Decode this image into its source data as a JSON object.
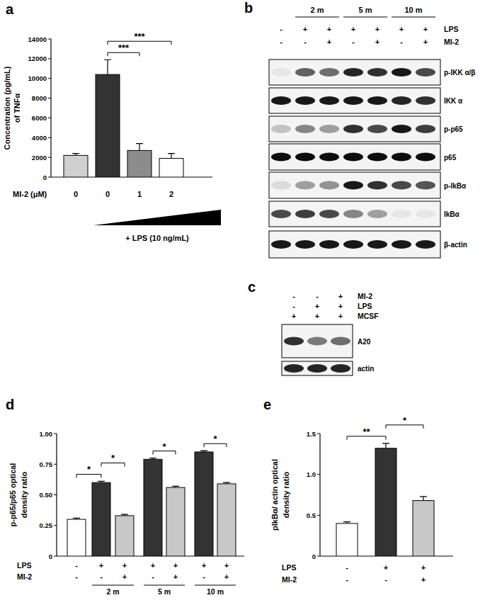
{
  "chart_data": [
    {
      "type": "bar",
      "panel_label": "a",
      "y_label": [
        "Concentration (pg/mL)",
        "of TNFα"
      ],
      "category_label": "MI-2 (μM)",
      "categories": [
        "0",
        "0",
        "1",
        "2"
      ],
      "values": [
        2200,
        10400,
        2700,
        1900
      ],
      "errors": [
        200,
        1500,
        700,
        500
      ],
      "colors": [
        "#d0d0d0",
        "#333333",
        "#8c8c8c",
        "#ffffff"
      ],
      "ylim": [
        0,
        14000
      ],
      "yticks": [
        0,
        2000,
        4000,
        6000,
        8000,
        10000,
        12000,
        14000
      ],
      "treatment_label": "+ LPS  (10 ng/mL)",
      "annotations": [
        {
          "from": 1,
          "to": 2,
          "label": "***"
        },
        {
          "from": 1,
          "to": 3,
          "label": "***"
        }
      ]
    },
    {
      "type": "bar",
      "panel_label": "d",
      "y_label": [
        "p-p65/p65 optical",
        "density ratio"
      ],
      "categories": [
        null,
        null,
        null,
        null,
        null,
        null,
        null
      ],
      "values": [
        0.3,
        0.6,
        0.33,
        0.79,
        0.56,
        0.85,
        0.59
      ],
      "errors": [
        0.01,
        0.01,
        0.01,
        0.01,
        0.01,
        0.01,
        0.01
      ],
      "colors": [
        "#ffffff",
        "#333333",
        "#c8c8c8",
        "#333333",
        "#c8c8c8",
        "#333333",
        "#c8c8c8"
      ],
      "ylim": [
        0,
        1
      ],
      "yticks": [
        0,
        0.25,
        {
          "value": 0.5,
          "label": "0.50"
        },
        0.75,
        {
          "value": 1,
          "label": "1.00"
        }
      ],
      "conditions": [
        {
          "label": "LPS",
          "values": [
            "-",
            "+",
            "+",
            "+",
            "+",
            "+",
            "+"
          ]
        },
        {
          "label": "MI-2",
          "values": [
            "-",
            "-",
            "+",
            "-",
            "+",
            "-",
            "+"
          ]
        }
      ],
      "groups": [
        {
          "label": "2 m",
          "from": 1,
          "to": 2
        },
        {
          "label": "5 m",
          "from": 3,
          "to": 4
        },
        {
          "label": "10 m",
          "from": 5,
          "to": 6
        }
      ],
      "annotations": [
        {
          "from": 0,
          "to": 1,
          "label": "*"
        },
        {
          "from": 1,
          "to": 2,
          "label": "*"
        },
        {
          "from": 3,
          "to": 4,
          "label": "*"
        },
        {
          "from": 5,
          "to": 6,
          "label": "*"
        }
      ]
    },
    {
      "type": "bar",
      "panel_label": "e",
      "y_label": [
        "pIkBα/ actin optical",
        "density ratio"
      ],
      "categories": [
        null,
        null,
        null
      ],
      "values": [
        0.4,
        1.32,
        0.68
      ],
      "errors": [
        0.02,
        0.06,
        0.05
      ],
      "colors": [
        "#ffffff",
        "#333333",
        "#c8c8c8"
      ],
      "ylim": [
        0,
        1.5
      ],
      "yticks": [
        0,
        0.5,
        {
          "value": 1,
          "label": "1.0"
        },
        1.5
      ],
      "conditions": [
        {
          "label": "LPS",
          "values": [
            "-",
            "+",
            "+"
          ]
        },
        {
          "label": "MI-2",
          "values": [
            "-",
            "-",
            "+"
          ]
        }
      ],
      "annotations": [
        {
          "from": 0,
          "to": 1,
          "label": "**"
        },
        {
          "from": 1,
          "to": 2,
          "label": "*"
        }
      ]
    }
  ],
  "blots": [
    {
      "panel_label": "b",
      "time_groups": [
        {
          "label": "2 m",
          "from": 1,
          "to": 2
        },
        {
          "label": "5 m",
          "from": 3,
          "to": 4
        },
        {
          "label": "10 m",
          "from": 5,
          "to": 6
        }
      ],
      "conditions": [
        {
          "label": "LPS",
          "values": [
            "-",
            "+",
            "+",
            "+",
            "+",
            "+",
            "+"
          ]
        },
        {
          "label": "MI-2",
          "values": [
            "-",
            "-",
            "+",
            "-",
            "+",
            "-",
            "+"
          ]
        }
      ],
      "bands": [
        {
          "label": "p-IKK α/β",
          "intensities": [
            0.05,
            0.6,
            0.55,
            0.85,
            0.8,
            0.9,
            0.7
          ]
        },
        {
          "label": "IKK α",
          "intensities": [
            0.9,
            0.9,
            0.9,
            0.9,
            0.9,
            0.85,
            0.8
          ]
        },
        {
          "label": "p-p65",
          "intensities": [
            0.2,
            0.45,
            0.35,
            0.8,
            0.7,
            0.9,
            0.75
          ]
        },
        {
          "label": "p65",
          "intensities": [
            0.95,
            0.95,
            0.95,
            0.95,
            0.95,
            0.95,
            0.95
          ]
        },
        {
          "label": "p-IkBα",
          "intensities": [
            0.1,
            0.35,
            0.4,
            0.9,
            0.8,
            0.7,
            0.65
          ]
        },
        {
          "label": "IkBα",
          "intensities": [
            0.7,
            0.75,
            0.7,
            0.45,
            0.35,
            0.05,
            0.05
          ]
        },
        {
          "label": "β-actin",
          "intensities": [
            0.9,
            0.9,
            0.9,
            0.9,
            0.9,
            0.9,
            0.9
          ]
        }
      ]
    },
    {
      "panel_label": "c",
      "conditions": [
        {
          "label": "MI-2",
          "values": [
            "-",
            "-",
            "+"
          ]
        },
        {
          "label": "LPS",
          "values": [
            "-",
            "+",
            "+"
          ]
        },
        {
          "label": "MCSF",
          "values": [
            "+",
            "+",
            "+"
          ]
        }
      ],
      "bands": [
        {
          "label": "A20",
          "intensities": [
            0.8,
            0.5,
            0.55
          ]
        },
        {
          "label": "actin",
          "intensities": [
            0.85,
            0.85,
            0.85
          ]
        }
      ]
    }
  ]
}
